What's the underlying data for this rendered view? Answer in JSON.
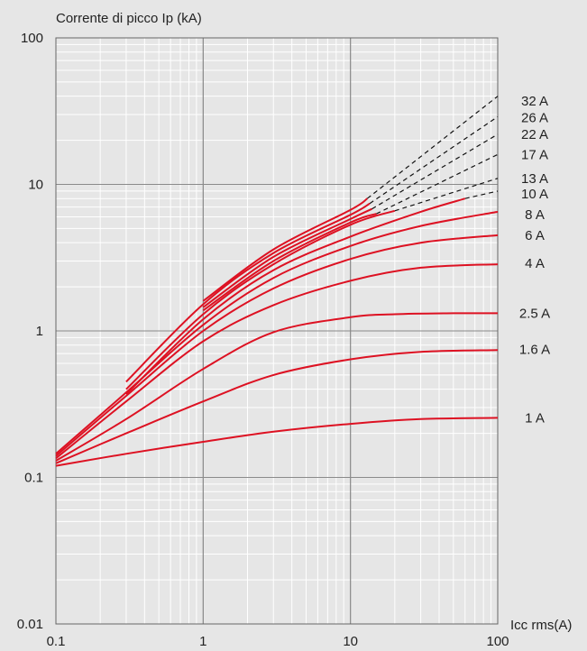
{
  "chart_data": {
    "type": "line",
    "title": "",
    "ylabel": "Corrente di picco Ip (kA)",
    "xlabel": "Icc rms(A)",
    "x_scale": "log",
    "y_scale": "log",
    "xlim": [
      0.1,
      100
    ],
    "ylim": [
      0.01,
      100
    ],
    "x_ticks": [
      {
        "value": 0.1,
        "label": "0.1"
      },
      {
        "value": 1,
        "label": "1"
      },
      {
        "value": 10,
        "label": "10"
      },
      {
        "value": 100,
        "label": "100"
      }
    ],
    "y_ticks": [
      {
        "value": 0.01,
        "label": "0.01"
      },
      {
        "value": 0.1,
        "label": "0.1"
      },
      {
        "value": 1,
        "label": "1"
      },
      {
        "value": 10,
        "label": "10"
      },
      {
        "value": 100,
        "label": "100"
      }
    ],
    "grid": true,
    "line_color": "#dd1122",
    "dashed_color": "#111111",
    "background": "#e6e6e6",
    "series": [
      {
        "name": "1 A",
        "x": [
          0.1,
          0.3,
          1,
          3,
          10,
          30,
          100
        ],
        "y": [
          0.12,
          0.145,
          0.175,
          0.205,
          0.232,
          0.25,
          0.255
        ],
        "label_at": 0.255
      },
      {
        "name": "1.6 A",
        "x": [
          0.1,
          0.3,
          1,
          3,
          10,
          30,
          100
        ],
        "y": [
          0.125,
          0.2,
          0.33,
          0.5,
          0.64,
          0.72,
          0.74
        ],
        "label_at": 0.75
      },
      {
        "name": "2.5 A",
        "x": [
          0.1,
          0.3,
          1,
          3,
          10,
          20,
          50,
          100
        ],
        "y": [
          0.13,
          0.25,
          0.55,
          0.98,
          1.24,
          1.3,
          1.32,
          1.32
        ],
        "label_at": 1.32
      },
      {
        "name": "4 A",
        "x": [
          0.1,
          0.3,
          1,
          3,
          10,
          30,
          100
        ],
        "y": [
          0.135,
          0.33,
          0.85,
          1.5,
          2.2,
          2.7,
          2.85
        ],
        "label_at": 2.9
      },
      {
        "name": "6 A",
        "x": [
          0.1,
          0.3,
          1,
          3,
          10,
          30,
          100
        ],
        "y": [
          0.14,
          0.36,
          1.0,
          1.95,
          3.1,
          4.0,
          4.5
        ],
        "label_at": 4.5
      },
      {
        "name": "8 A",
        "x": [
          0.1,
          0.3,
          1,
          3,
          10,
          30,
          100
        ],
        "y": [
          0.145,
          0.38,
          1.1,
          2.3,
          3.8,
          5.2,
          6.5
        ],
        "label_at": 6.2
      },
      {
        "name": "10 A",
        "x": [
          0.3,
          1,
          3,
          10,
          30,
          60
        ],
        "y": [
          0.37,
          1.2,
          2.6,
          4.4,
          6.5,
          8.0
        ],
        "dashed_x": [
          60,
          100
        ],
        "dashed_y": [
          8.0,
          9.0
        ],
        "label_at": 8.6
      },
      {
        "name": "13 A",
        "x": [
          0.3,
          1,
          3,
          10,
          20
        ],
        "y": [
          0.4,
          1.3,
          2.85,
          5.3,
          6.6
        ],
        "dashed_x": [
          20,
          100
        ],
        "dashed_y": [
          6.6,
          11.0
        ],
        "label_at": 11.0
      },
      {
        "name": "17 A",
        "x": [
          1,
          3,
          10,
          15
        ],
        "y": [
          1.38,
          3.0,
          5.5,
          6.3
        ],
        "dashed_x": [
          15,
          100
        ],
        "dashed_y": [
          6.3,
          16.0
        ],
        "label_at": 16.0
      },
      {
        "name": "22 A",
        "x": [
          1,
          3,
          10,
          14
        ],
        "y": [
          1.45,
          3.2,
          5.8,
          6.8
        ],
        "dashed_x": [
          14,
          100
        ],
        "dashed_y": [
          6.8,
          22.0
        ],
        "label_at": 22.0
      },
      {
        "name": "26 A",
        "x": [
          0.3,
          1,
          3,
          10,
          13.5
        ],
        "y": [
          0.45,
          1.52,
          3.4,
          6.2,
          7.4
        ],
        "dashed_x": [
          13.5,
          100
        ],
        "dashed_y": [
          7.4,
          29.0
        ],
        "label_at": 28.5
      },
      {
        "name": "32 A",
        "x": [
          1,
          3,
          10,
          13
        ],
        "y": [
          1.6,
          3.6,
          6.7,
          8.0
        ],
        "dashed_x": [
          13,
          100
        ],
        "dashed_y": [
          8.0,
          40.0
        ],
        "label_at": 37.0
      }
    ]
  }
}
